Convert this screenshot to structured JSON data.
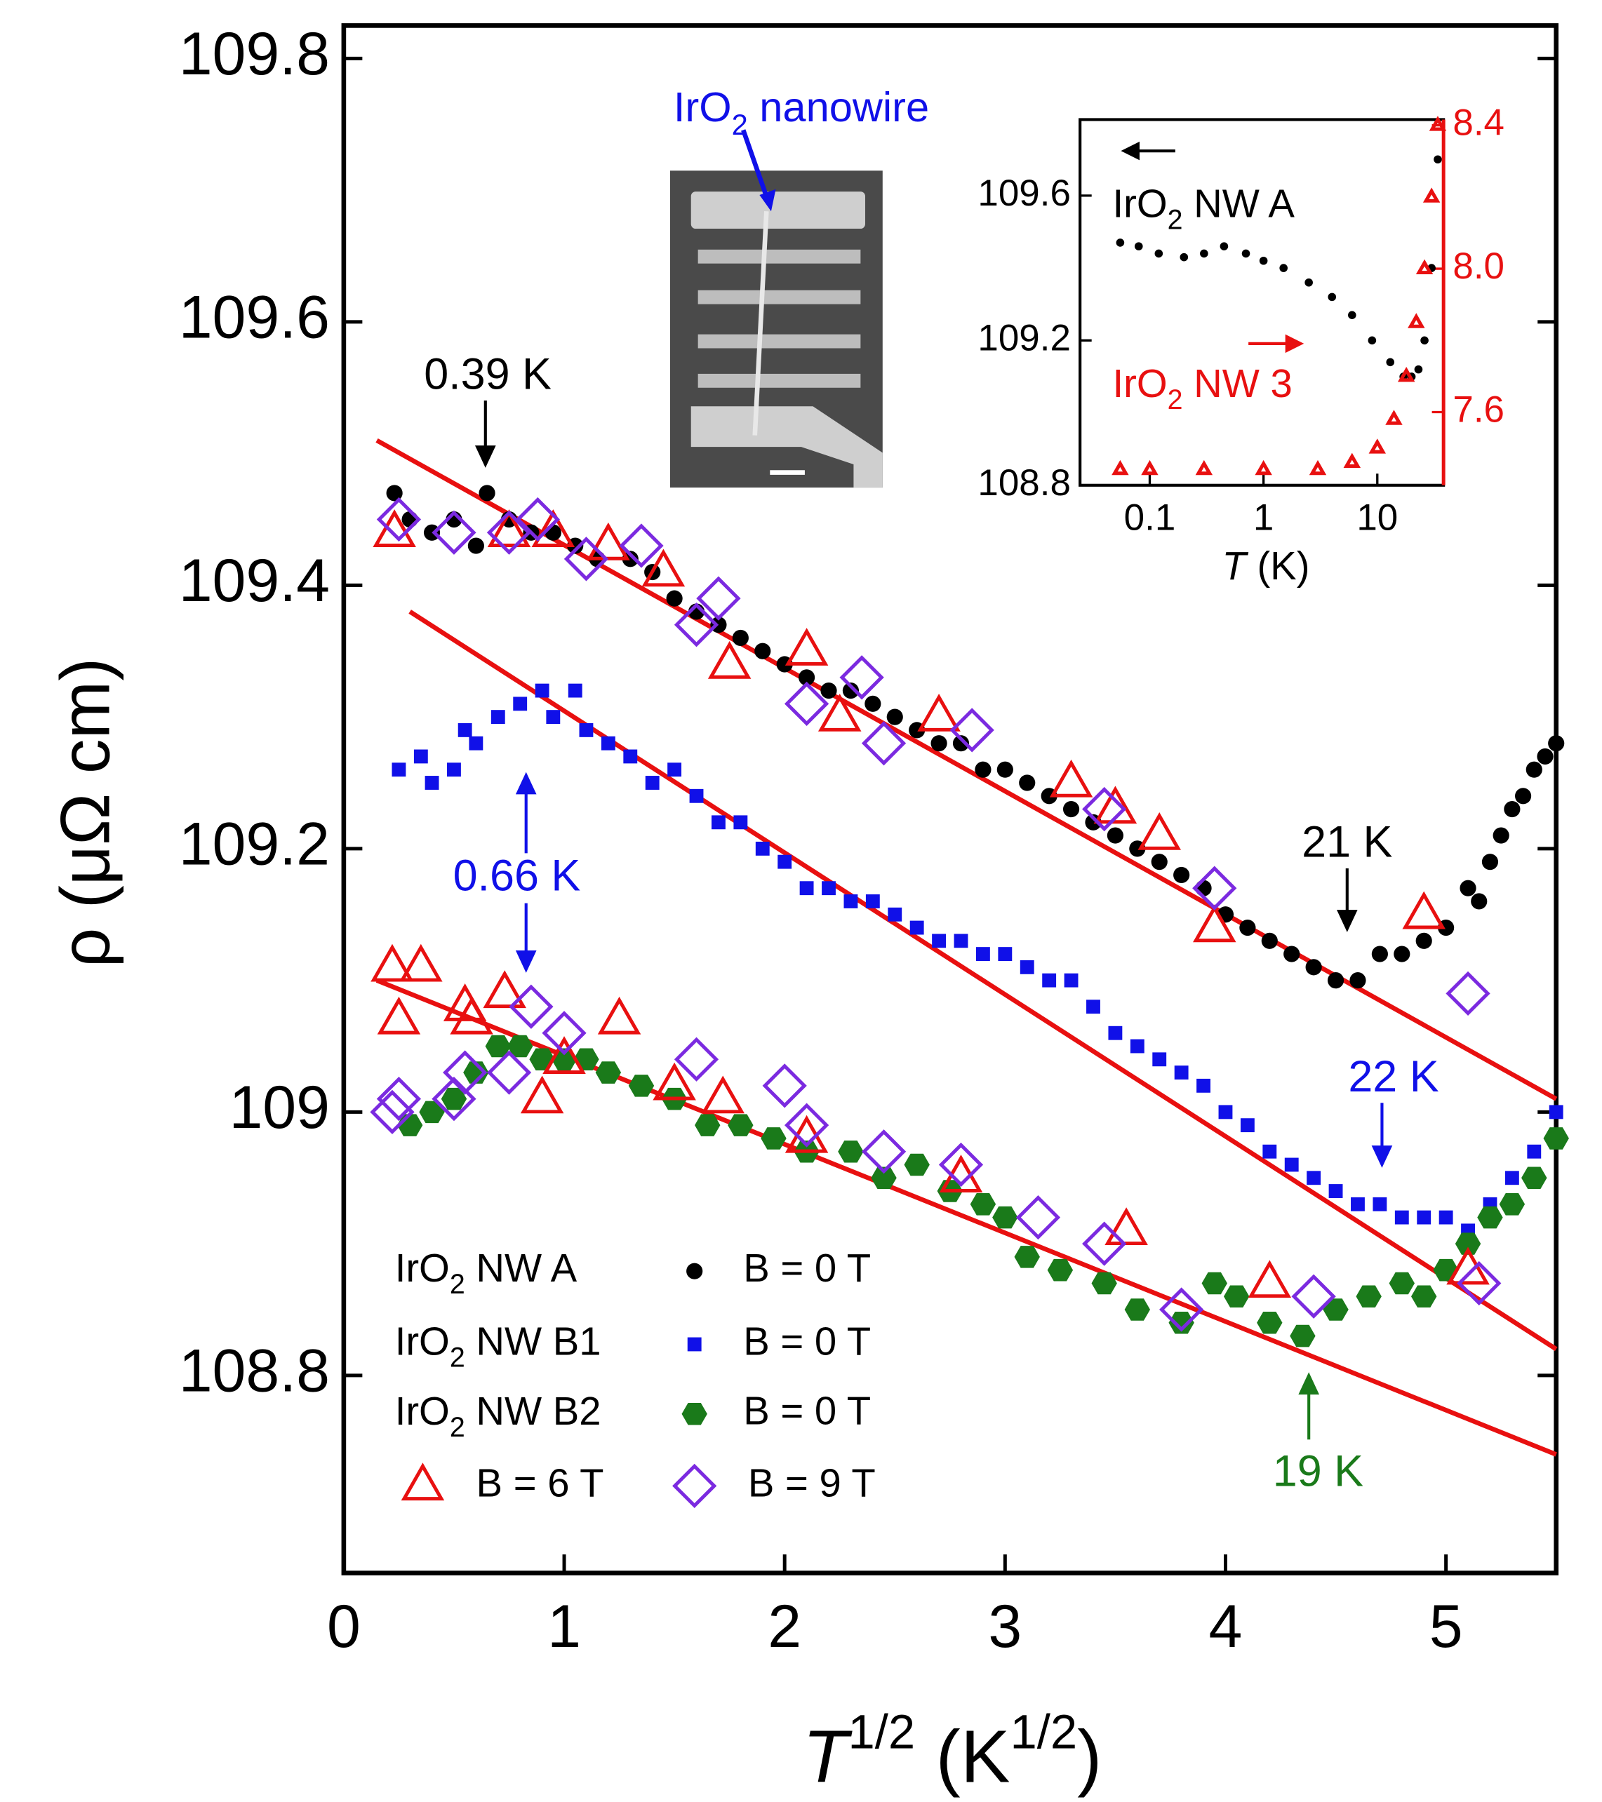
{
  "chart_data": [
    {
      "type": "scatter",
      "x_label": [
        "T",
        "1/2",
        " (K",
        "1/2",
        ")"
      ],
      "y_label": "ρ (μΩ cm)",
      "xlim": [
        0,
        5.5
      ],
      "xticks": [
        0,
        1,
        2,
        3,
        4,
        5
      ],
      "ylim": [
        108.65,
        109.825
      ],
      "yticks": [
        108.8,
        109,
        109.2,
        109.4,
        109.6,
        109.8
      ],
      "ytick_labels_fixed": null,
      "series": [
        {
          "sample": [
            "IrO",
            "2",
            " NW A"
          ],
          "name": "B = 0 T",
          "color": "#000000",
          "marker": "circle",
          "x": [
            0.23,
            0.3,
            0.4,
            0.5,
            0.6,
            0.65,
            0.75,
            0.85,
            0.95,
            1.05,
            1.15,
            1.3,
            1.4,
            1.5,
            1.6,
            1.7,
            1.8,
            1.9,
            2.0,
            2.1,
            2.2,
            2.3,
            2.4,
            2.5,
            2.6,
            2.7,
            2.8,
            2.9,
            3.0,
            3.1,
            3.2,
            3.3,
            3.4,
            3.5,
            3.6,
            3.7,
            3.8,
            3.9,
            4.0,
            4.1,
            4.2,
            4.3,
            4.4,
            4.5,
            4.6,
            4.7,
            4.8,
            4.9,
            5.0,
            5.1,
            5.15,
            5.2,
            5.25,
            5.3,
            5.35,
            5.4,
            5.45,
            5.5
          ],
          "values": [
            109.47,
            109.45,
            109.44,
            109.45,
            109.43,
            109.47,
            109.45,
            109.44,
            109.44,
            109.43,
            109.42,
            109.42,
            109.41,
            109.39,
            109.38,
            109.37,
            109.36,
            109.35,
            109.34,
            109.33,
            109.32,
            109.32,
            109.31,
            109.3,
            109.29,
            109.28,
            109.28,
            109.26,
            109.26,
            109.25,
            109.24,
            109.23,
            109.22,
            109.21,
            109.2,
            109.19,
            109.18,
            109.17,
            109.15,
            109.14,
            109.13,
            109.12,
            109.11,
            109.1,
            109.1,
            109.12,
            109.12,
            109.13,
            109.14,
            109.17,
            109.16,
            109.19,
            109.21,
            109.23,
            109.24,
            109.26,
            109.27,
            109.28
          ]
        },
        {
          "sample": [
            "IrO",
            "2",
            " NW B1"
          ],
          "name": "B = 0 T",
          "color": "#1010e8",
          "marker": "square",
          "x": [
            0.25,
            0.35,
            0.4,
            0.5,
            0.55,
            0.6,
            0.7,
            0.8,
            0.9,
            0.95,
            1.05,
            1.1,
            1.2,
            1.3,
            1.4,
            1.5,
            1.6,
            1.7,
            1.8,
            1.9,
            2.0,
            2.1,
            2.2,
            2.3,
            2.4,
            2.5,
            2.6,
            2.7,
            2.8,
            2.9,
            3.0,
            3.1,
            3.2,
            3.3,
            3.4,
            3.5,
            3.6,
            3.7,
            3.8,
            3.9,
            4.0,
            4.1,
            4.2,
            4.3,
            4.4,
            4.5,
            4.6,
            4.7,
            4.8,
            4.9,
            5.0,
            5.1,
            5.2,
            5.3,
            5.4,
            5.5
          ],
          "values": [
            109.26,
            109.27,
            109.25,
            109.26,
            109.29,
            109.28,
            109.3,
            109.31,
            109.32,
            109.3,
            109.32,
            109.29,
            109.28,
            109.27,
            109.25,
            109.26,
            109.24,
            109.22,
            109.22,
            109.2,
            109.19,
            109.17,
            109.17,
            109.16,
            109.16,
            109.15,
            109.14,
            109.13,
            109.13,
            109.12,
            109.12,
            109.11,
            109.1,
            109.1,
            109.08,
            109.06,
            109.05,
            109.04,
            109.03,
            109.02,
            109.0,
            108.99,
            108.97,
            108.96,
            108.95,
            108.94,
            108.93,
            108.93,
            108.92,
            108.92,
            108.92,
            108.91,
            108.93,
            108.95,
            108.97,
            109.0
          ]
        },
        {
          "sample": [
            "IrO",
            "2",
            " NW B2"
          ],
          "name": "B = 0 T",
          "color": "#1a7a1a",
          "marker": "hexagon",
          "x": [
            0.3,
            0.4,
            0.5,
            0.6,
            0.7,
            0.8,
            0.9,
            1.0,
            1.1,
            1.2,
            1.35,
            1.5,
            1.65,
            1.8,
            1.95,
            2.1,
            2.3,
            2.45,
            2.6,
            2.75,
            2.9,
            3.0,
            3.1,
            3.25,
            3.45,
            3.6,
            3.8,
            3.95,
            4.05,
            4.2,
            4.35,
            4.5,
            4.65,
            4.8,
            4.9,
            5.0,
            5.1,
            5.2,
            5.3,
            5.4,
            5.5
          ],
          "values": [
            108.99,
            109.0,
            109.01,
            109.03,
            109.05,
            109.05,
            109.04,
            109.04,
            109.04,
            109.03,
            109.02,
            109.01,
            108.99,
            108.99,
            108.98,
            108.97,
            108.97,
            108.95,
            108.96,
            108.94,
            108.93,
            108.92,
            108.89,
            108.88,
            108.87,
            108.85,
            108.84,
            108.87,
            108.86,
            108.84,
            108.83,
            108.85,
            108.86,
            108.87,
            108.86,
            108.88,
            108.9,
            108.92,
            108.93,
            108.95,
            108.98
          ]
        },
        {
          "name": "B = 6 T",
          "color": "#e81010",
          "marker": "triangle",
          "x": [
            0.23,
            0.75,
            0.95,
            1.2,
            1.45,
            1.75,
            2.1,
            2.25,
            2.7,
            3.3,
            3.5,
            3.7,
            3.95,
            4.9,
            0.22,
            0.35,
            0.25,
            0.55,
            0.58,
            0.73,
            0.9,
            1.0,
            1.25,
            1.5,
            1.72,
            2.1,
            2.8,
            3.55,
            4.2,
            5.1
          ],
          "values": [
            109.44,
            109.44,
            109.44,
            109.43,
            109.41,
            109.34,
            109.35,
            109.3,
            109.3,
            109.25,
            109.23,
            109.21,
            109.14,
            109.15,
            109.11,
            109.11,
            109.07,
            109.08,
            109.07,
            109.09,
            109.01,
            109.04,
            109.07,
            109.02,
            109.01,
            108.98,
            108.95,
            108.91,
            108.87,
            108.88
          ]
        },
        {
          "name": "B = 9 T",
          "color": "#7b2ae0",
          "marker": "diamond",
          "x": [
            0.25,
            0.5,
            0.75,
            0.88,
            1.1,
            1.35,
            1.6,
            1.7,
            2.1,
            2.35,
            2.45,
            2.85,
            3.45,
            3.95,
            5.1,
            0.22,
            0.25,
            0.5,
            0.55,
            0.75,
            0.85,
            1.0,
            1.6,
            2.0,
            2.1,
            2.45,
            2.8,
            3.15,
            3.45,
            3.8,
            4.4,
            5.15
          ],
          "values": [
            109.45,
            109.44,
            109.44,
            109.45,
            109.42,
            109.43,
            109.37,
            109.39,
            109.31,
            109.33,
            109.28,
            109.29,
            109.23,
            109.17,
            109.09,
            109.0,
            109.01,
            109.01,
            109.03,
            109.03,
            109.08,
            109.06,
            109.04,
            109.02,
            108.99,
            108.97,
            108.96,
            108.92,
            108.9,
            108.85,
            108.86,
            108.87
          ]
        }
      ],
      "fits": [
        {
          "color": "#e81010",
          "x": [
            0.15,
            5.5
          ],
          "values": [
            109.51,
            109.01
          ]
        },
        {
          "color": "#e81010",
          "x": [
            0.3,
            5.5
          ],
          "values": [
            109.38,
            108.82
          ]
        },
        {
          "color": "#e81010",
          "x": [
            0.15,
            5.5
          ],
          "values": [
            109.1,
            108.74
          ]
        }
      ],
      "annotations": [
        {
          "text": "0.39 K",
          "color": "#000000"
        },
        {
          "text": "21 K",
          "color": "#000000"
        },
        {
          "text": "0.66 K",
          "color": "#1010e8"
        },
        {
          "text": "22 K",
          "color": "#1010e8"
        },
        {
          "text": "19 K",
          "color": "#1a7a1a"
        }
      ],
      "image_label": [
        "IrO",
        "2",
        " nanowire"
      ]
    },
    {
      "type": "scatter",
      "xlog": true,
      "x_label": [
        "T",
        " (K)"
      ],
      "xlim": [
        0.0244,
        38.2
      ],
      "xticks": [
        0.1,
        1,
        10
      ],
      "ylim": [
        108.8,
        109.81
      ],
      "yticks": [
        108.8,
        109.2,
        109.6
      ],
      "y2lim": [
        7.396,
        8.416
      ],
      "y2ticks": [
        7.6,
        {
          "value": 8,
          "label": "8.0"
        },
        8.4
      ],
      "y2color": "#e81010",
      "series": [
        {
          "sample": [
            "IrO",
            "2",
            " NW A"
          ],
          "color": "#000000",
          "x": [
            0.055,
            0.08,
            0.12,
            0.2,
            0.3,
            0.45,
            0.7,
            1,
            1.5,
            2.5,
            4,
            6,
            9,
            13,
            17,
            20,
            23,
            26,
            30,
            34
          ],
          "values": [
            109.47,
            109.46,
            109.44,
            109.43,
            109.44,
            109.46,
            109.44,
            109.42,
            109.4,
            109.36,
            109.32,
            109.27,
            109.2,
            109.14,
            109.1,
            109.1,
            109.12,
            109.2,
            109.4,
            109.7
          ]
        },
        {
          "sample": [
            "IrO",
            "2",
            " NW 3"
          ],
          "color": "#e81010",
          "axis": "y2",
          "x": [
            0.055,
            0.1,
            0.3,
            1,
            3,
            6,
            10,
            14,
            18,
            22,
            26,
            30,
            34
          ],
          "values": [
            7.44,
            7.44,
            7.44,
            7.44,
            7.44,
            7.46,
            7.5,
            7.58,
            7.7,
            7.85,
            8.0,
            8.2,
            8.4
          ]
        }
      ]
    }
  ]
}
